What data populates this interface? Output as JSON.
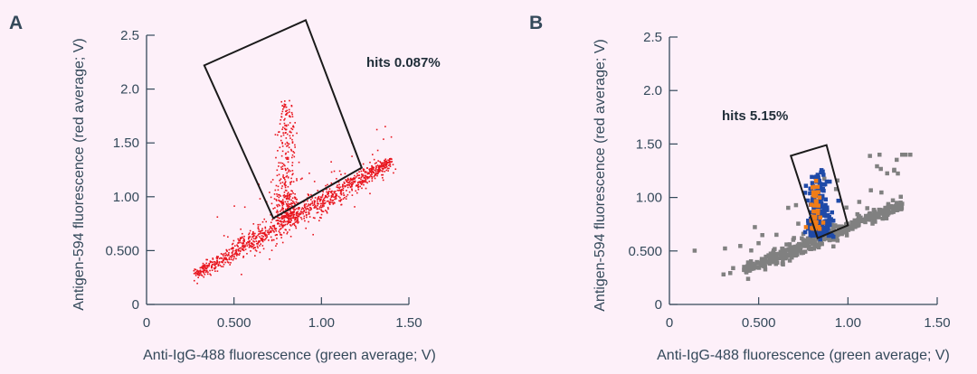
{
  "chart_data": [
    {
      "panel": "A",
      "type": "scatter",
      "xlabel": "Anti-IgG-488 fluorescence (green average; V)",
      "ylabel": "Antigen-594 fluorescence (red average; V)",
      "xlim": [
        0,
        1.5
      ],
      "ylim": [
        0,
        2.5
      ],
      "xticks": [
        "0",
        "0.500",
        "1.00",
        "1.50"
      ],
      "xtick_values": [
        0,
        0.5,
        1.0,
        1.5
      ],
      "yticks": [
        "0",
        "0.500",
        "1.00",
        "1.50",
        "2.0",
        "2.5"
      ],
      "ytick_values": [
        0,
        0.5,
        1.0,
        1.5,
        2.0,
        2.5
      ],
      "annotation": "hits 0.087%",
      "gate": [
        [
          0.33,
          2.22
        ],
        [
          0.91,
          2.64
        ],
        [
          1.23,
          1.27
        ],
        [
          0.725,
          0.8
        ]
      ],
      "colors": {
        "points": "#e8141c"
      },
      "clusters": [
        {
          "kind": "band",
          "x0": 0.28,
          "y0": 0.28,
          "x1": 1.4,
          "y1": 1.33,
          "spread": 0.025,
          "count": 1100,
          "color": "#e8141c"
        },
        {
          "kind": "column",
          "x": 0.8,
          "ymin": 0.8,
          "ymax": 1.9,
          "spread": 0.035,
          "count": 350,
          "color": "#e8141c"
        },
        {
          "kind": "scatter",
          "xmin": 0.3,
          "xmax": 1.45,
          "ymin": 0.4,
          "ymax": 2.1,
          "count": 60,
          "color": "#e8141c"
        }
      ],
      "grid": false
    },
    {
      "panel": "B",
      "type": "scatter",
      "xlabel": "Anti-IgG-488 fluorescence (green average; V)",
      "ylabel": "Antigen-594 fluorescence (red average; V)",
      "xlim": [
        0,
        1.5
      ],
      "ylim": [
        0,
        2.5
      ],
      "xticks": [
        "0",
        "0.500",
        "1.00",
        "1.50"
      ],
      "xtick_values": [
        0,
        0.5,
        1.0,
        1.5
      ],
      "yticks": [
        "0",
        "0.500",
        "1.00",
        "1.50",
        "2.0",
        "2.5"
      ],
      "ytick_values": [
        0,
        0.5,
        1.0,
        1.5,
        2.0,
        2.5
      ],
      "annotation": "hits 5.15%",
      "gate": [
        [
          0.68,
          1.39
        ],
        [
          0.88,
          1.49
        ],
        [
          1.0,
          0.74
        ],
        [
          0.83,
          0.62
        ]
      ],
      "colors": {
        "background_cells": "#808080",
        "hits_blue": "#1f4aa8",
        "hits_orange": "#f07d18"
      },
      "clusters": [
        {
          "kind": "band",
          "x0": 0.42,
          "y0": 0.32,
          "x1": 1.3,
          "y1": 0.93,
          "spread": 0.018,
          "count": 420,
          "color": "#808080"
        },
        {
          "kind": "scatter",
          "xmin": 0.1,
          "xmax": 1.35,
          "ymin": 0.0,
          "ymax": 1.4,
          "count": 45,
          "color": "#808080"
        },
        {
          "kind": "column",
          "x": 0.84,
          "ymin": 0.65,
          "ymax": 1.25,
          "spread": 0.035,
          "count": 200,
          "color": "#1f4aa8"
        },
        {
          "kind": "column",
          "x": 0.82,
          "ymin": 0.72,
          "ymax": 1.15,
          "spread": 0.018,
          "count": 40,
          "color": "#f07d18"
        }
      ],
      "grid": false
    }
  ]
}
